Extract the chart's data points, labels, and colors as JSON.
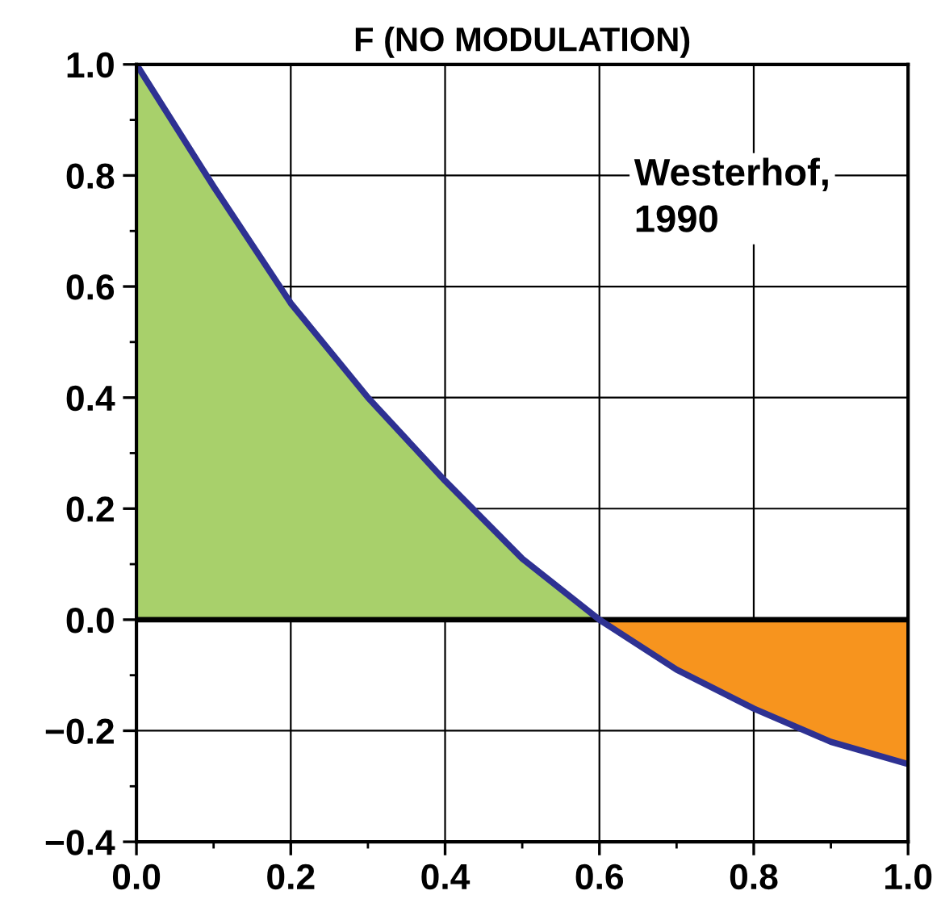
{
  "chart_data": {
    "type": "area",
    "title": "F (NO MODULATION)",
    "annotations": [
      "Westerhof,\n1990"
    ],
    "series": [
      {
        "color": "#a8d06b",
        "x": [
          0,
          0.1,
          0.2,
          0.3,
          0.4,
          0.5,
          0.6
        ],
        "values": [
          1.0,
          0.78,
          0.57,
          0.4,
          0.25,
          0.11,
          0.0
        ]
      },
      {
        "color": "#f7941e",
        "x": [
          0.6,
          0.7,
          0.8,
          0.9,
          1.0
        ],
        "values": [
          0.0,
          -0.09,
          -0.16,
          -0.22,
          -0.26
        ]
      },
      {
        "type": "line",
        "color": "#2e3192",
        "x": [
          0,
          0.1,
          0.2,
          0.3,
          0.4,
          0.5,
          0.6,
          0.7,
          0.8,
          0.9,
          1.0
        ],
        "values": [
          1.0,
          0.78,
          0.57,
          0.4,
          0.25,
          0.11,
          0.0,
          -0.09,
          -0.16,
          -0.22,
          -0.26
        ]
      }
    ],
    "ref_lines": [
      {
        "axis": "y",
        "value": 0,
        "color": "#000000"
      }
    ],
    "xlim": [
      0,
      1
    ],
    "ylim": [
      -0.4,
      1.0
    ],
    "xticks": [
      {
        "value": 0,
        "label": "0.0"
      },
      0.2,
      0.4,
      0.6,
      0.8,
      {
        "value": 1,
        "label": "1.0"
      }
    ],
    "yticks": [
      {
        "value": -0.4,
        "label": "−0.4"
      },
      {
        "value": -0.2,
        "label": "−0.2"
      },
      {
        "value": 0,
        "label": "0.0"
      },
      0.2,
      0.4,
      0.6,
      0.8,
      {
        "value": 1,
        "label": "1.0"
      }
    ],
    "grid": true,
    "legend": false
  }
}
